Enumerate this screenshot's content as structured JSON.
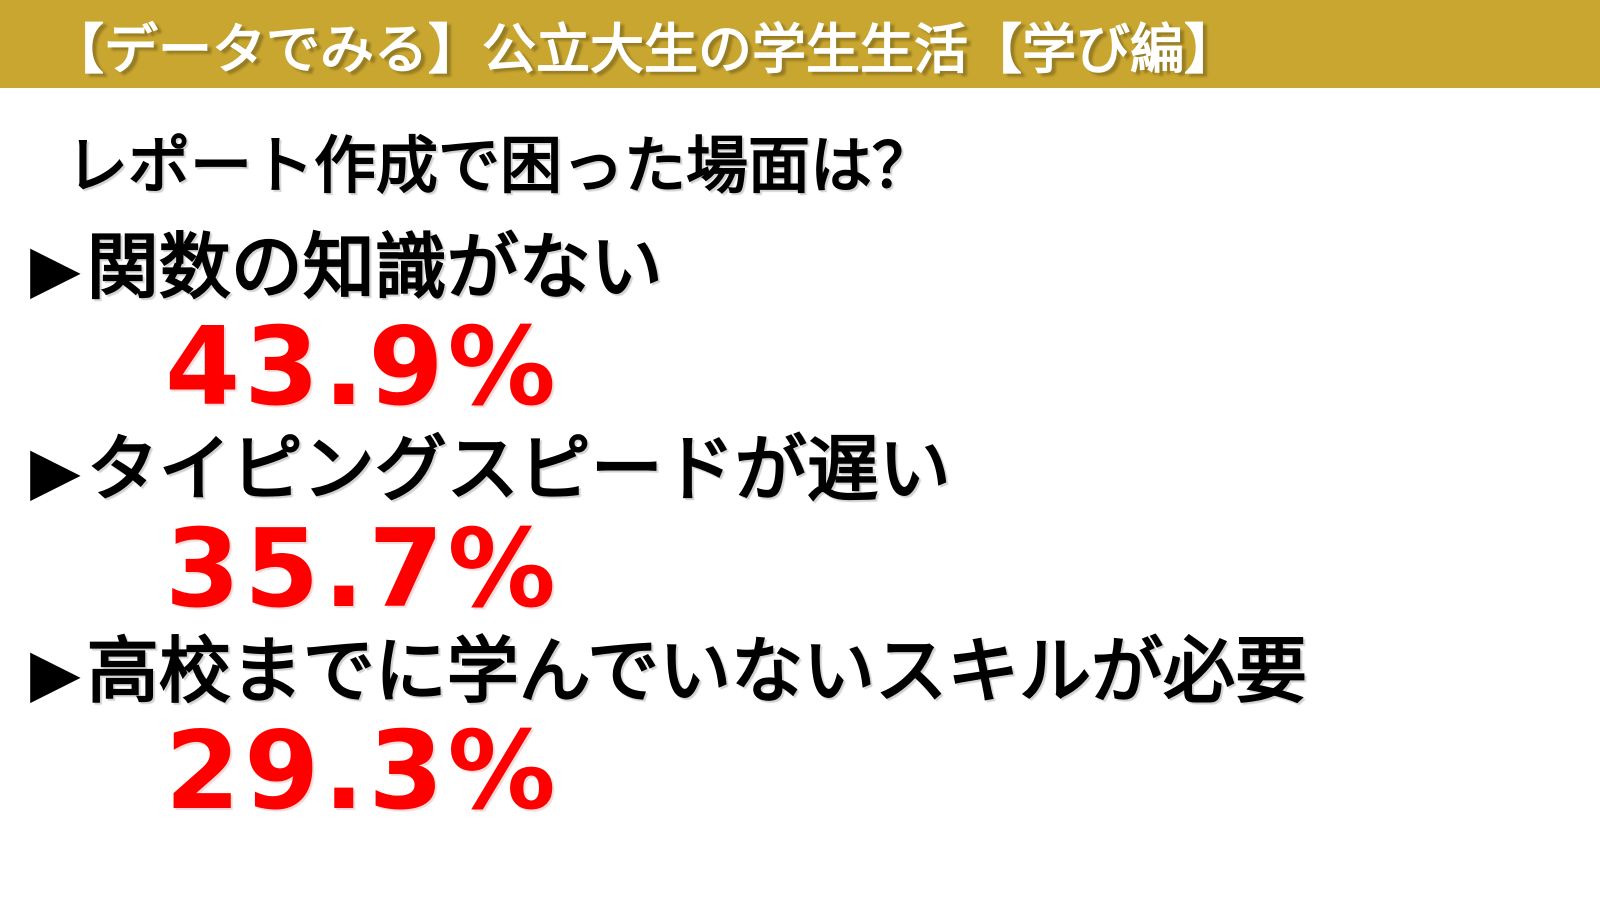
{
  "header": {
    "title": "【データでみる】公立大生の学生生活【学び編】",
    "bg_color": "#C9A62F",
    "text_color": "#FFFFFF"
  },
  "question": "レポート作成で困った場面は？",
  "bullet_glyph": "▶",
  "items": [
    {
      "label": "関数の知識がない",
      "value": "43.9%"
    },
    {
      "label": "タイピングスピードが遅い",
      "value": "35.7%"
    },
    {
      "label": "高校までに学んでいないスキルが必要",
      "value": "29.3%"
    }
  ],
  "colors": {
    "accent_red": "#FF0000",
    "text_black": "#000000",
    "header_gold": "#C9A62F"
  }
}
